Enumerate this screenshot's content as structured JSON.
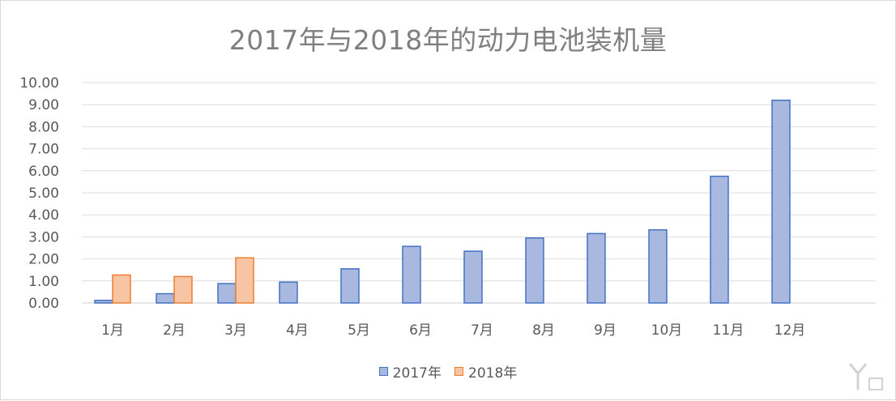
{
  "chart_data": {
    "type": "bar",
    "title": "2017年与2018年的动力电池装机量",
    "categories": [
      "1月",
      "2月",
      "3月",
      "4月",
      "5月",
      "6月",
      "7月",
      "8月",
      "9月",
      "10月",
      "11月",
      "12月"
    ],
    "series": [
      {
        "name": "2017年",
        "color": "#4472c4",
        "fill": "#a9b8df",
        "values": [
          0.12,
          0.42,
          0.88,
          0.95,
          1.55,
          2.57,
          2.35,
          2.95,
          3.15,
          3.32,
          5.75,
          9.2
        ]
      },
      {
        "name": "2018年",
        "color": "#ed7d31",
        "fill": "#f7c4a4",
        "values": [
          1.27,
          1.2,
          2.05,
          null,
          null,
          null,
          null,
          null,
          null,
          null,
          null,
          null
        ]
      }
    ],
    "ylim": [
      0,
      10
    ],
    "yticks": [
      "0.00",
      "1.00",
      "2.00",
      "3.00",
      "4.00",
      "5.00",
      "6.00",
      "7.00",
      "8.00",
      "9.00",
      "10.00"
    ],
    "grid": true,
    "legend": "bottom",
    "xlabel": "",
    "ylabel": ""
  },
  "watermark_icon": "yiou-logo-icon"
}
